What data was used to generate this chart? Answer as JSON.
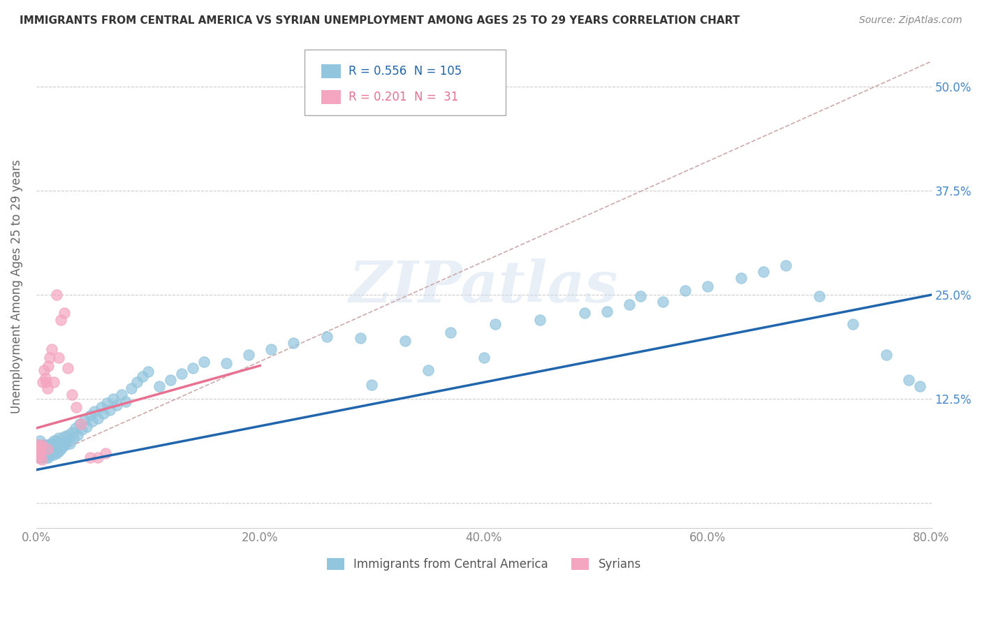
{
  "title": "IMMIGRANTS FROM CENTRAL AMERICA VS SYRIAN UNEMPLOYMENT AMONG AGES 25 TO 29 YEARS CORRELATION CHART",
  "source": "Source: ZipAtlas.com",
  "ylabel": "Unemployment Among Ages 25 to 29 years",
  "xlim": [
    0.0,
    0.8
  ],
  "ylim": [
    -0.03,
    0.55
  ],
  "legend1_label": "Immigrants from Central America",
  "legend2_label": "Syrians",
  "R1": 0.556,
  "N1": 105,
  "R2": 0.201,
  "N2": 31,
  "color_blue": "#92C5DE",
  "color_pink": "#F4A5C0",
  "line_blue": "#2166AC",
  "line_pink": "#E87090",
  "line_dash": "#C8A0A0",
  "watermark": "ZIPatlas",
  "blue_scatter_x": [
    0.001,
    0.001,
    0.002,
    0.002,
    0.003,
    0.003,
    0.003,
    0.004,
    0.004,
    0.005,
    0.005,
    0.005,
    0.006,
    0.006,
    0.007,
    0.007,
    0.008,
    0.008,
    0.009,
    0.009,
    0.01,
    0.01,
    0.01,
    0.011,
    0.011,
    0.012,
    0.012,
    0.013,
    0.013,
    0.014,
    0.015,
    0.015,
    0.016,
    0.016,
    0.017,
    0.018,
    0.018,
    0.019,
    0.02,
    0.02,
    0.022,
    0.023,
    0.024,
    0.025,
    0.026,
    0.027,
    0.028,
    0.03,
    0.032,
    0.033,
    0.035,
    0.037,
    0.039,
    0.041,
    0.043,
    0.045,
    0.048,
    0.05,
    0.052,
    0.055,
    0.058,
    0.06,
    0.063,
    0.066,
    0.069,
    0.072,
    0.076,
    0.08,
    0.085,
    0.09,
    0.095,
    0.1,
    0.11,
    0.12,
    0.13,
    0.14,
    0.15,
    0.17,
    0.19,
    0.21,
    0.23,
    0.26,
    0.29,
    0.33,
    0.37,
    0.41,
    0.45,
    0.49,
    0.51,
    0.53,
    0.54,
    0.56,
    0.58,
    0.6,
    0.63,
    0.65,
    0.67,
    0.7,
    0.73,
    0.76,
    0.78,
    0.79,
    0.3,
    0.35,
    0.4
  ],
  "blue_scatter_y": [
    0.06,
    0.065,
    0.055,
    0.07,
    0.055,
    0.06,
    0.075,
    0.06,
    0.065,
    0.055,
    0.06,
    0.07,
    0.055,
    0.065,
    0.06,
    0.07,
    0.058,
    0.065,
    0.055,
    0.07,
    0.058,
    0.062,
    0.07,
    0.055,
    0.068,
    0.058,
    0.065,
    0.06,
    0.072,
    0.065,
    0.058,
    0.07,
    0.062,
    0.075,
    0.065,
    0.06,
    0.075,
    0.068,
    0.062,
    0.078,
    0.065,
    0.072,
    0.068,
    0.08,
    0.07,
    0.075,
    0.082,
    0.072,
    0.085,
    0.078,
    0.09,
    0.082,
    0.095,
    0.088,
    0.1,
    0.092,
    0.105,
    0.098,
    0.11,
    0.102,
    0.115,
    0.108,
    0.12,
    0.112,
    0.125,
    0.118,
    0.13,
    0.122,
    0.138,
    0.145,
    0.152,
    0.158,
    0.14,
    0.148,
    0.155,
    0.162,
    0.17,
    0.168,
    0.178,
    0.185,
    0.192,
    0.2,
    0.198,
    0.195,
    0.205,
    0.215,
    0.22,
    0.228,
    0.23,
    0.238,
    0.248,
    0.242,
    0.255,
    0.26,
    0.27,
    0.278,
    0.285,
    0.248,
    0.215,
    0.178,
    0.148,
    0.14,
    0.142,
    0.16,
    0.175
  ],
  "pink_scatter_x": [
    0.0005,
    0.001,
    0.001,
    0.002,
    0.002,
    0.003,
    0.003,
    0.004,
    0.005,
    0.005,
    0.006,
    0.007,
    0.008,
    0.009,
    0.01,
    0.01,
    0.011,
    0.012,
    0.014,
    0.016,
    0.018,
    0.02,
    0.022,
    0.025,
    0.028,
    0.032,
    0.036,
    0.04,
    0.048,
    0.055,
    0.062
  ],
  "pink_scatter_y": [
    0.065,
    0.06,
    0.07,
    0.055,
    0.065,
    0.058,
    0.068,
    0.062,
    0.052,
    0.07,
    0.145,
    0.16,
    0.15,
    0.145,
    0.138,
    0.065,
    0.165,
    0.175,
    0.185,
    0.145,
    0.25,
    0.175,
    0.22,
    0.228,
    0.162,
    0.13,
    0.115,
    0.095,
    0.055,
    0.055,
    0.06
  ],
  "blue_line_x0": 0.0,
  "blue_line_y0": 0.04,
  "blue_line_x1": 0.8,
  "blue_line_y1": 0.25,
  "pink_line_x0": 0.0,
  "pink_line_y0": 0.09,
  "pink_line_x1": 0.2,
  "pink_line_y1": 0.165,
  "dash_line_x0": 0.0,
  "dash_line_y0": 0.05,
  "dash_line_x1": 0.8,
  "dash_line_y1": 0.53
}
